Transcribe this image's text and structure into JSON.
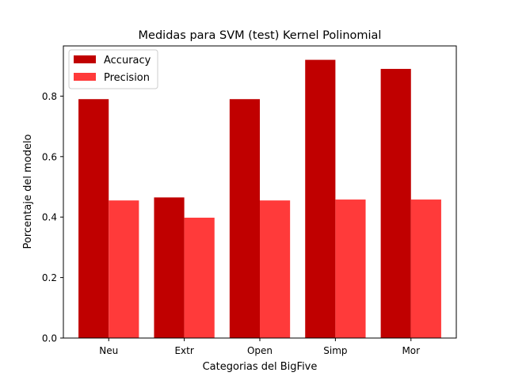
{
  "chart_data": {
    "type": "bar",
    "title": "Medidas para SVM (test) Kernel Polinomial",
    "xlabel": "Categorias del BigFive",
    "ylabel": "Porcentaje del modelo",
    "categories": [
      "Neu",
      "Extr",
      "Open",
      "Simp",
      "Mor"
    ],
    "series": [
      {
        "name": "Accuracy",
        "color": "#c00000",
        "values": [
          0.79,
          0.465,
          0.79,
          0.92,
          0.89
        ]
      },
      {
        "name": "Precision",
        "color": "#ff3a3a",
        "values": [
          0.455,
          0.398,
          0.455,
          0.458,
          0.458
        ]
      }
    ],
    "ylim": [
      0,
      0.966
    ],
    "yticks": [
      "0.0",
      "0.2",
      "0.4",
      "0.6",
      "0.8"
    ],
    "legend_position": "top-left",
    "grid": false
  }
}
